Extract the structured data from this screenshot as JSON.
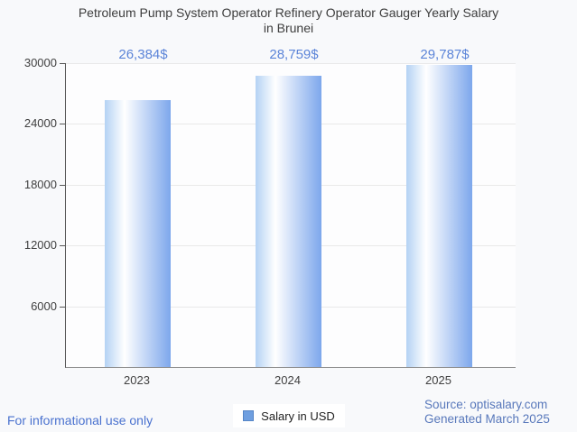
{
  "title": {
    "line1": "Petroleum Pump System Operator Refinery Operator Gauger Yearly Salary",
    "line2": "in Brunei"
  },
  "chart_data": {
    "type": "bar",
    "title": "Petroleum Pump System Operator Refinery Operator Gauger Yearly Salary in Brunei",
    "categories": [
      "2023",
      "2024",
      "2025"
    ],
    "series": [
      {
        "name": "Salary in USD",
        "values": [
          26384,
          28759,
          29787
        ]
      }
    ],
    "value_labels": [
      "26,384$",
      "28,759$",
      "29,787$"
    ],
    "xlabel": "",
    "ylabel": "",
    "ylim": [
      0,
      30000
    ],
    "yticks": [
      30000,
      24000,
      18000,
      12000,
      6000
    ],
    "grid": true,
    "legend": {
      "label": "Salary in USD",
      "position": "bottom-center"
    }
  },
  "footer": {
    "disclaimer": "For informational use only",
    "source": "Source: optisalary.com",
    "generated": "Generated March 2025"
  },
  "colors": {
    "page_bg": "#f8f9fb",
    "plot_bg": "#fdfdfe",
    "gridline": "#e9e9e9",
    "axis": "#565656",
    "baseline": "#8f8f8f",
    "title_text": "#3d3d3d",
    "tick_label": "#404040",
    "value_label": "#5b84d8",
    "bar_light": "#b4d2f4",
    "bar_mid": "#ffffff",
    "bar_dark": "#7da7ec",
    "legend_swatch": "#6f9fe0",
    "legend_swatch_border": "#5585c6",
    "footer_link": "#4a72cf",
    "source_text": "#5878bb"
  }
}
